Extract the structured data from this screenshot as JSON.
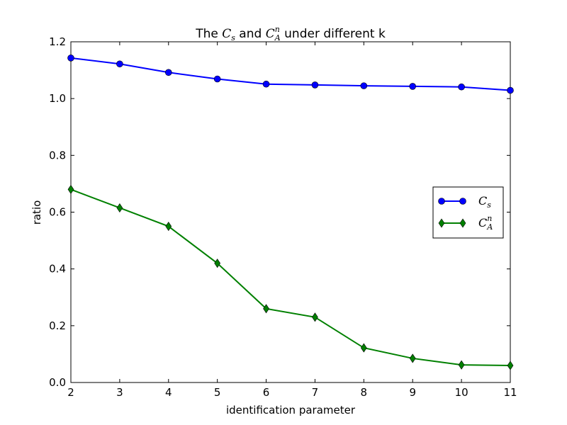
{
  "chart_data": {
    "type": "line",
    "title": {
      "prefix": "The ",
      "cs_base": "C",
      "cs_sub": "s",
      "middle": " and ",
      "ca_base": "C",
      "ca_sub": "A",
      "ca_sup": "n",
      "suffix": " under different k"
    },
    "xlabel": "identification parameter",
    "ylabel": "ratio",
    "x": [
      2,
      3,
      4,
      5,
      6,
      7,
      8,
      9,
      10,
      11
    ],
    "xlim": [
      2,
      11
    ],
    "ylim": [
      0.0,
      1.2
    ],
    "xticks": [
      2,
      3,
      4,
      5,
      6,
      7,
      8,
      9,
      10,
      11
    ],
    "yticks": [
      "0.0",
      "0.2",
      "0.4",
      "0.6",
      "0.8",
      "1.0",
      "1.2"
    ],
    "grid": false,
    "legend_position": "right",
    "series": [
      {
        "name": "C_s",
        "legend_base": "C",
        "legend_sub": "s",
        "legend_sup": "",
        "color": "#0000ff",
        "marker": "circle",
        "values": [
          1.143,
          1.122,
          1.092,
          1.069,
          1.051,
          1.048,
          1.045,
          1.043,
          1.041,
          1.029
        ]
      },
      {
        "name": "C_A^n",
        "legend_base": "C",
        "legend_sub": "A",
        "legend_sup": "n",
        "color": "#008000",
        "marker": "diamond",
        "values": [
          0.68,
          0.615,
          0.55,
          0.42,
          0.26,
          0.23,
          0.122,
          0.085,
          0.062,
          0.06
        ]
      }
    ]
  }
}
